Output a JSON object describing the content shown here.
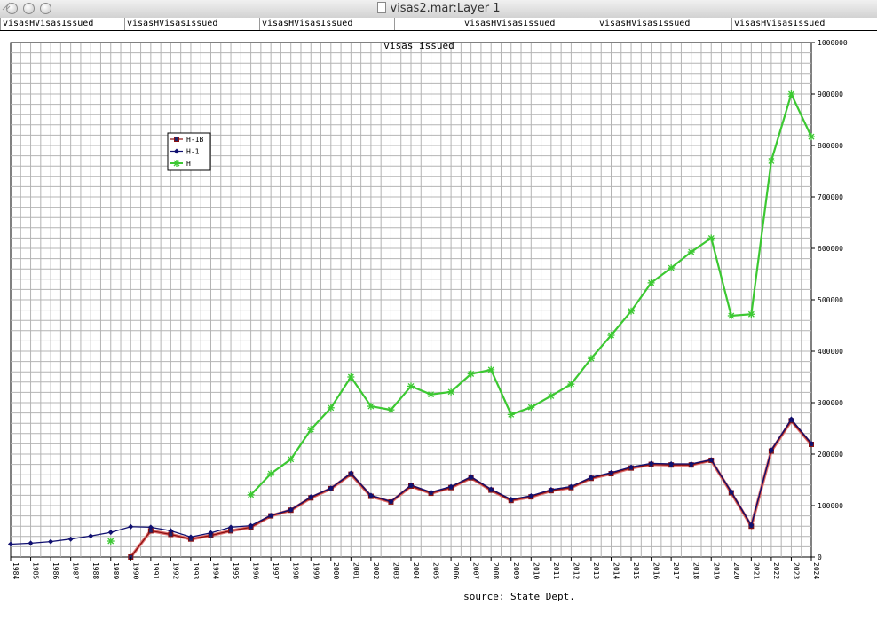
{
  "window": {
    "title": "visas2.mar:Layer 1"
  },
  "column_headers": [
    "visasHVisasIssued",
    "visasHVisasIssued",
    "visasHVisasIssued",
    "",
    "visasHVisasIssued",
    "visasHVisasIssued",
    "visasHVisasIssued"
  ],
  "chart_data": {
    "type": "line",
    "title": "visas issued",
    "caption": "source: State Dept.",
    "x": [
      1984,
      1985,
      1986,
      1987,
      1988,
      1989,
      1990,
      1991,
      1992,
      1993,
      1994,
      1995,
      1996,
      1997,
      1998,
      1999,
      2000,
      2001,
      2002,
      2003,
      2004,
      2005,
      2006,
      2007,
      2008,
      2009,
      2010,
      2011,
      2012,
      2013,
      2014,
      2015,
      2016,
      2017,
      2018,
      2019,
      2020,
      2021,
      2022,
      2023,
      2024
    ],
    "ylim": [
      0,
      1000000
    ],
    "yticks": [
      0,
      100000,
      200000,
      300000,
      400000,
      500000,
      600000,
      700000,
      800000,
      900000,
      1000000
    ],
    "grid": true,
    "legend_position": "top-left",
    "series": [
      {
        "name": "H-1B",
        "color": "#8b1010",
        "marker": "square",
        "values": [
          null,
          null,
          null,
          null,
          null,
          null,
          0,
          51000,
          44000,
          35000,
          42000,
          51000,
          58000,
          80000,
          91000,
          115000,
          133000,
          161000,
          118000,
          107000,
          138000,
          124000,
          135000,
          154000,
          130000,
          110000,
          117000,
          129000,
          135000,
          153000,
          162000,
          173000,
          180000,
          179000,
          179000,
          188000,
          125000,
          60000,
          206000,
          265000,
          219000
        ]
      },
      {
        "name": "H-1",
        "color": "#101070",
        "marker": "diamond",
        "values": [
          25000,
          27000,
          30000,
          35000,
          41000,
          48000,
          59000,
          58000,
          51000,
          39000,
          47000,
          58000,
          61000,
          81000,
          92000,
          117000,
          134000,
          163000,
          120000,
          108000,
          140000,
          126000,
          137000,
          156000,
          132000,
          112000,
          119000,
          131000,
          137000,
          155000,
          164000,
          175000,
          182000,
          181000,
          181000,
          189000,
          127000,
          62000,
          208000,
          268000,
          221000
        ]
      },
      {
        "name": "H",
        "color": "#3cc832",
        "marker": "star",
        "values": [
          null,
          null,
          null,
          null,
          null,
          31000,
          null,
          null,
          null,
          null,
          null,
          null,
          121000,
          162000,
          190000,
          248000,
          290000,
          350000,
          293000,
          286000,
          332000,
          316000,
          321000,
          356000,
          364000,
          277000,
          291000,
          313000,
          336000,
          386000,
          431000,
          478000,
          533000,
          562000,
          593000,
          620000,
          469000,
          472000,
          770000,
          900000,
          817000
        ]
      }
    ]
  }
}
